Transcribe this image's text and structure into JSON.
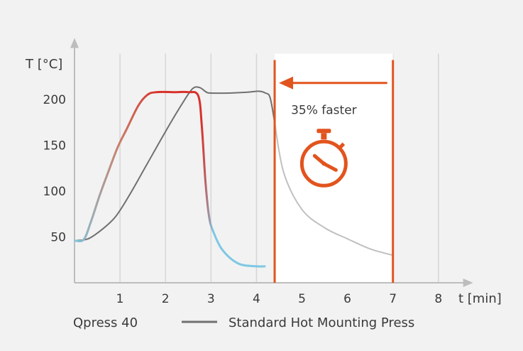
{
  "chart_data": {
    "type": "line",
    "title": "",
    "xlabel": "t [min]",
    "ylabel": "T [°C]",
    "xlim": [
      0,
      8.7
    ],
    "ylim": [
      0,
      250
    ],
    "x_ticks": [
      1,
      2,
      3,
      4,
      5,
      6,
      7,
      8
    ],
    "y_ticks": [
      50,
      100,
      150,
      200
    ],
    "grid": "vertical",
    "series": [
      {
        "name": "Qpress 40",
        "color_start": "#7ec8e3",
        "color_end": "#d8312a",
        "x": [
          0,
          0.2,
          0.35,
          0.55,
          0.75,
          0.95,
          1.15,
          1.4,
          1.6,
          1.8,
          2.2,
          2.5,
          2.72,
          2.8,
          2.88,
          2.96,
          3.05,
          3.25,
          3.6,
          4.0,
          4.2
        ],
        "y": [
          46,
          47,
          65,
          95,
          122,
          148,
          168,
          193,
          205,
          208,
          208,
          208,
          204,
          170,
          110,
          72,
          56,
          36,
          21,
          18,
          18
        ]
      },
      {
        "name": "Standard Hot Mounting Press",
        "color": "#707070",
        "color_cooling": "#c0c0c0",
        "x": [
          0,
          0.3,
          0.6,
          0.9,
          1.2,
          1.6,
          2.0,
          2.4,
          2.6,
          2.75,
          2.9,
          3.0,
          3.4,
          3.8,
          4.05,
          4.2,
          4.3,
          4.4,
          4.6,
          5.0,
          5.5,
          6.0,
          6.5,
          7.0
        ],
        "y": [
          46,
          48,
          58,
          72,
          95,
          130,
          165,
          198,
          212,
          213,
          208,
          207,
          207,
          208,
          209,
          207,
          202,
          175,
          120,
          80,
          60,
          48,
          37,
          30
        ]
      }
    ],
    "annotations": {
      "speedup_label": "35% faster",
      "region_start": 4.4,
      "region_end": 7.0,
      "accent_color": "#e2541e"
    },
    "legend": {
      "placement": "bottom",
      "entries": [
        "Qpress 40",
        "Standard Hot Mounting Press"
      ]
    }
  }
}
